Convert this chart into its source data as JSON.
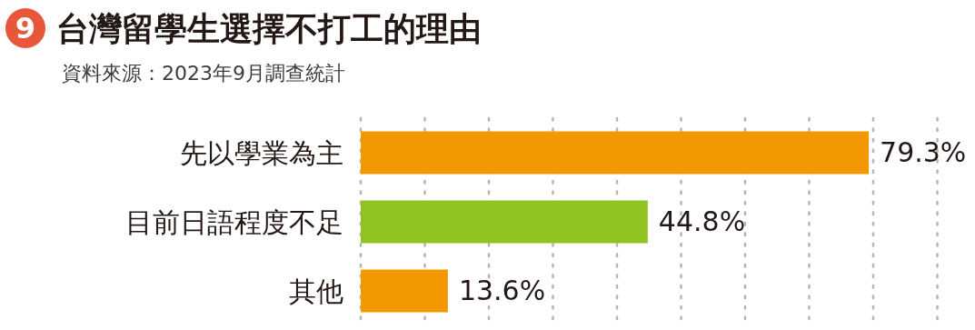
{
  "chart_data": {
    "type": "bar",
    "orientation": "horizontal",
    "title": "台灣留學生選擇不打工的理由",
    "subtitle": "資料來源：2023年9月調查統計",
    "annotations": [
      "9"
    ],
    "categories": [
      "先以學業為主",
      "目前日語程度不足",
      "其他"
    ],
    "values": [
      79.3,
      44.8,
      13.6
    ],
    "colors": [
      "#f39800",
      "#8fc31f",
      "#f39800"
    ],
    "value_labels": [
      "79.3%",
      "44.8%",
      "13.6%"
    ],
    "xticks": [
      {
        "value": 0,
        "label": null
      },
      {
        "value": 10,
        "label": null
      },
      {
        "value": 20,
        "label": null
      },
      {
        "value": 30,
        "label": null
      },
      {
        "value": 40,
        "label": null
      },
      {
        "value": 50,
        "label": null
      },
      {
        "value": 60,
        "label": null
      },
      {
        "value": 70,
        "label": null
      },
      {
        "value": 80,
        "label": null
      },
      {
        "value": 90,
        "label": null
      }
    ],
    "grid": "x"
  }
}
